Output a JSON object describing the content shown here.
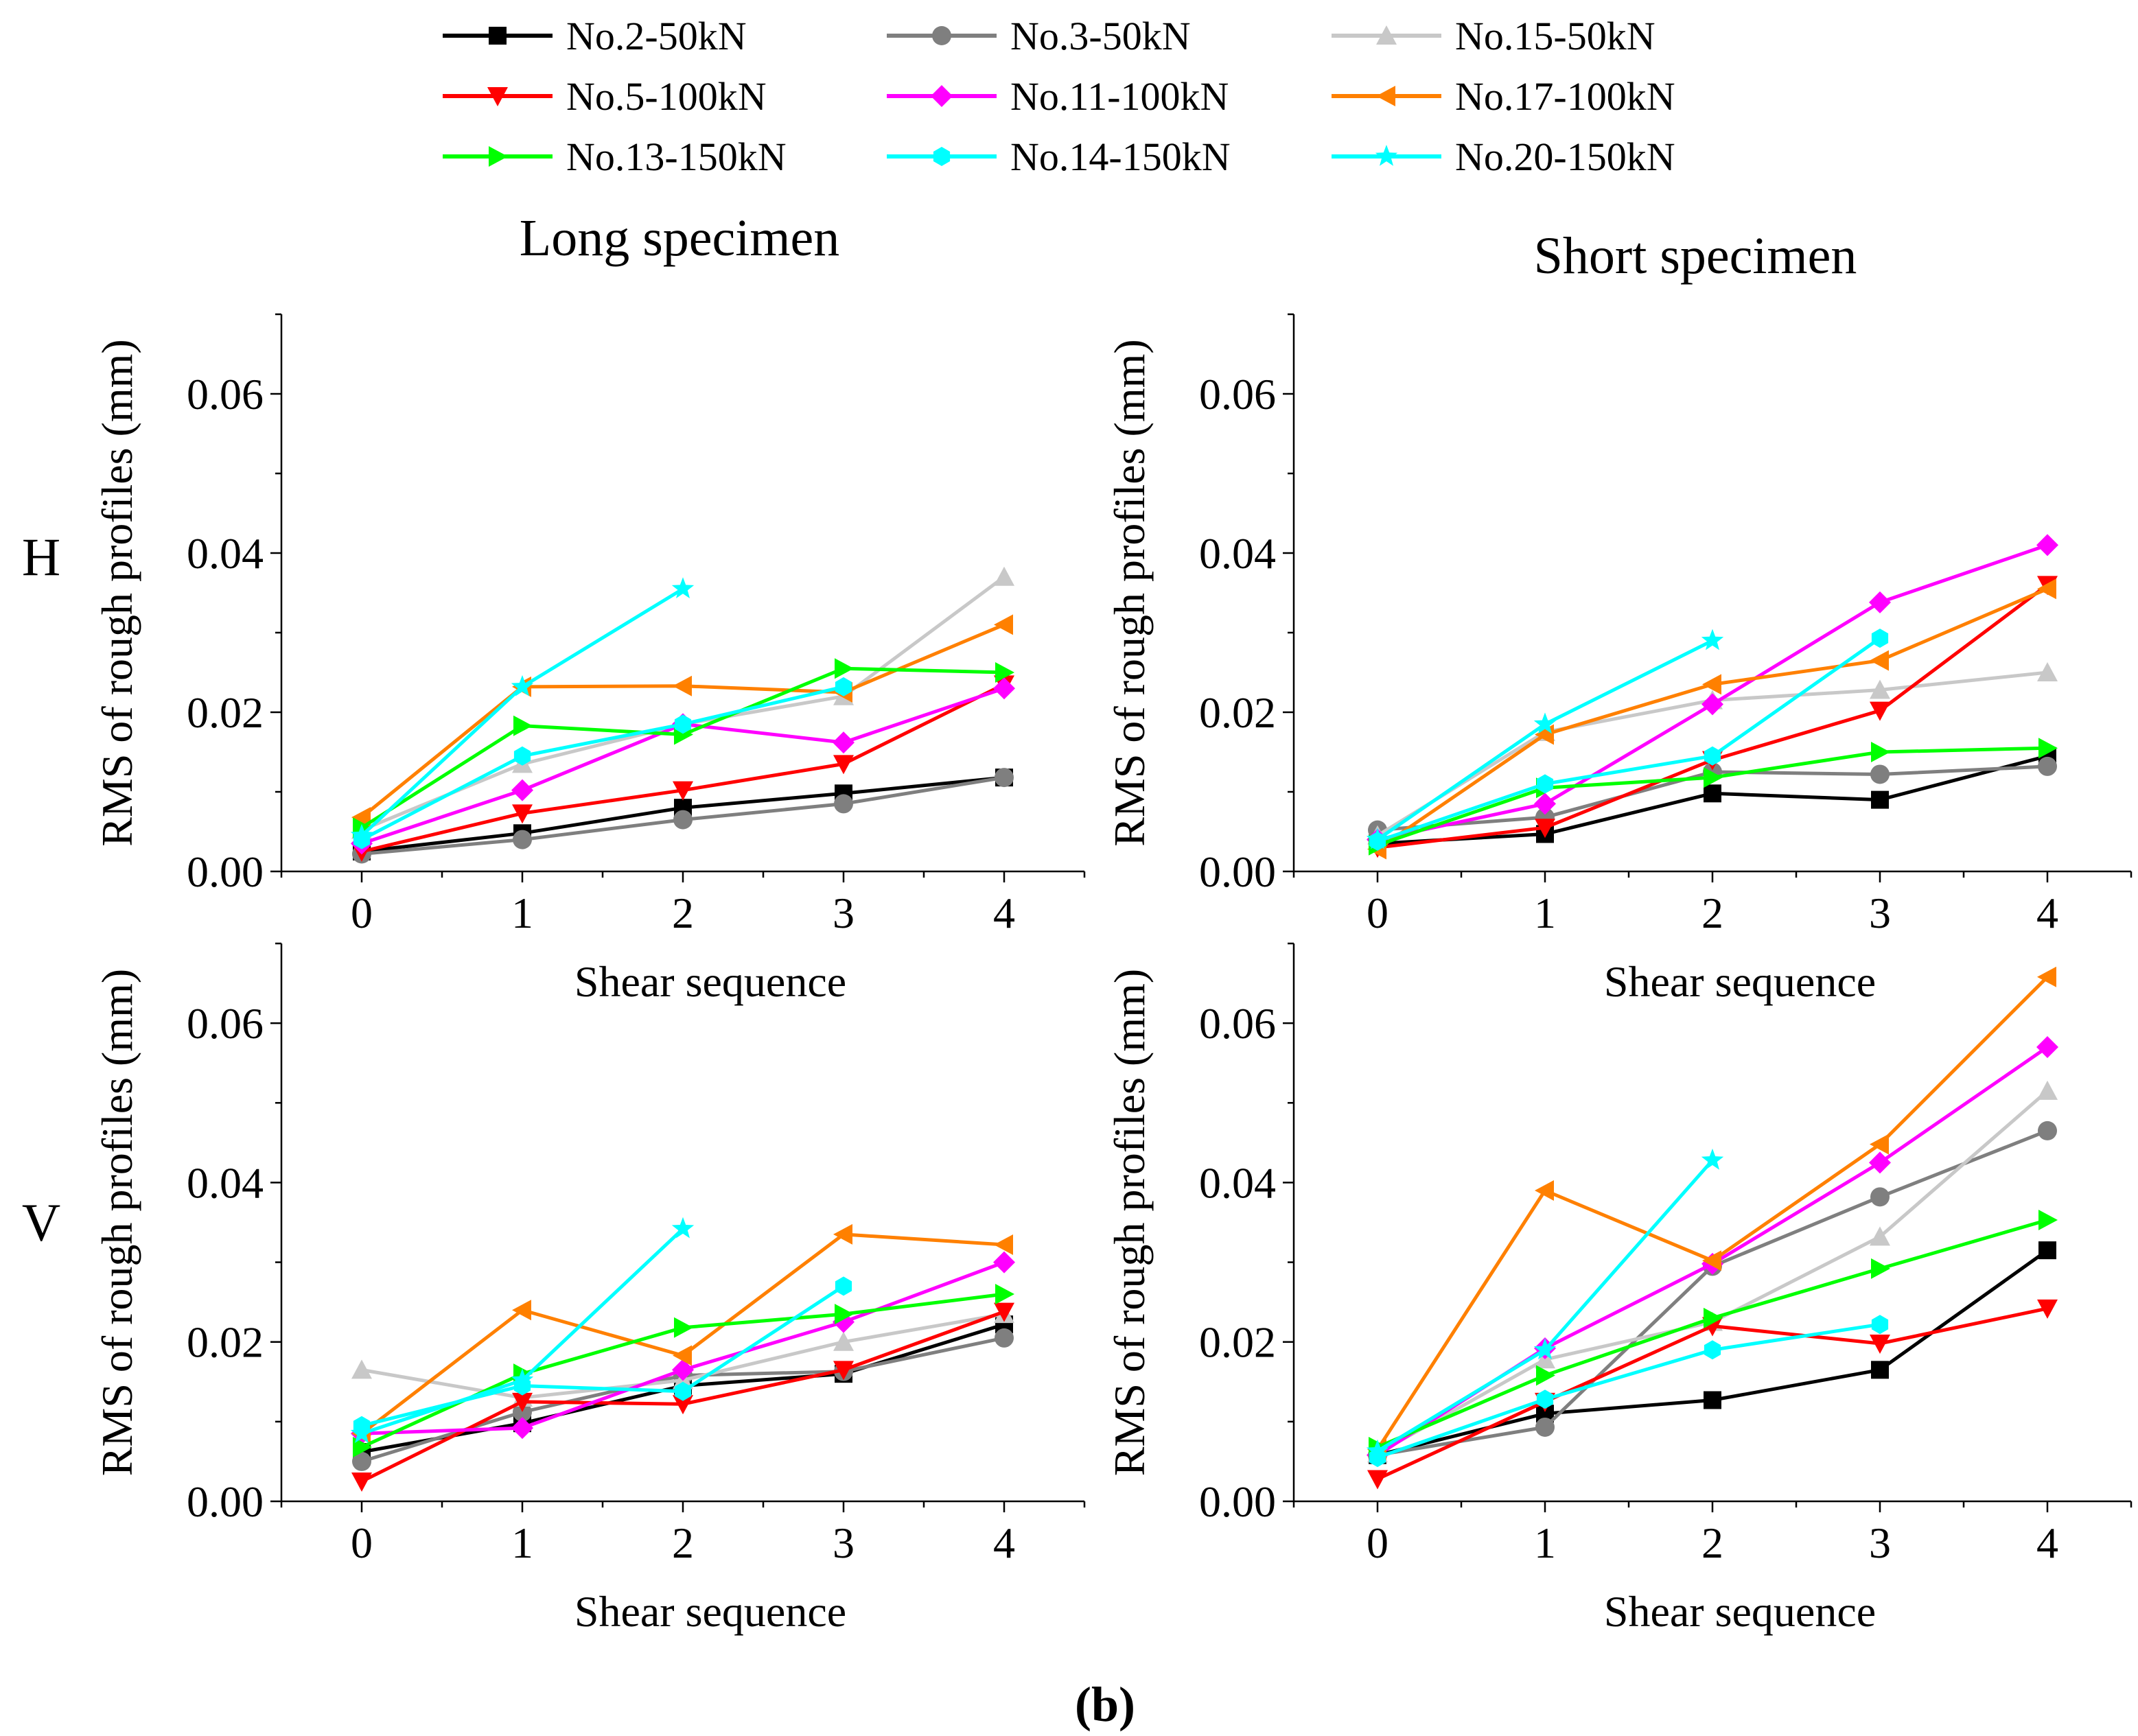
{
  "figure_label": "(b)",
  "column_titles": {
    "left": "Long specimen",
    "right": "Short specimen"
  },
  "row_labels": {
    "top": "H",
    "bottom": "V"
  },
  "legend": [
    {
      "name": "No.2-50kN",
      "color": "#000000",
      "marker": "square"
    },
    {
      "name": "No.3-50kN",
      "color": "#7f7f7f",
      "marker": "circle"
    },
    {
      "name": "No.15-50kN",
      "color": "#c8c8c8",
      "marker": "triangle-up"
    },
    {
      "name": "No.5-100kN",
      "color": "#ff0000",
      "marker": "triangle-down"
    },
    {
      "name": "No.11-100kN",
      "color": "#ff00ff",
      "marker": "diamond"
    },
    {
      "name": "No.17-100kN",
      "color": "#ff8000",
      "marker": "triangle-left"
    },
    {
      "name": "No.13-150kN",
      "color": "#00ff00",
      "marker": "triangle-right"
    },
    {
      "name": "No.14-150kN",
      "color": "#00ffff",
      "marker": "hexagon"
    },
    {
      "name": "No.20-150kN",
      "color": "#00ffff",
      "marker": "star"
    }
  ],
  "chart_data": [
    {
      "type": "line",
      "title": "Long specimen - H",
      "xlabel": "Shear sequence",
      "ylabel": "RMS of rough profiles (mm)",
      "xlim": [
        -0.5,
        4.5
      ],
      "ylim": [
        0,
        0.07
      ],
      "x_ticks": [
        "0",
        "1",
        "2",
        "3",
        "4"
      ],
      "y_ticks": [
        "0.00",
        "0.02",
        "0.04",
        "0.06"
      ],
      "x": [
        0,
        1,
        2,
        3,
        4
      ],
      "series": [
        {
          "name": "No.2-50kN",
          "values": [
            0.0025,
            0.0048,
            0.008,
            0.0098,
            0.0118
          ]
        },
        {
          "name": "No.3-50kN",
          "values": [
            0.0022,
            0.004,
            0.0065,
            0.0085,
            0.0118
          ]
        },
        {
          "name": "No.15-50kN",
          "values": [
            0.0052,
            0.0135,
            0.0185,
            0.022,
            0.037
          ]
        },
        {
          "name": "No.5-100kN",
          "values": [
            0.0025,
            0.0073,
            0.0102,
            0.0135,
            0.0235
          ]
        },
        {
          "name": "No.11-100kN",
          "values": [
            0.0035,
            0.0102,
            0.0185,
            0.0162,
            0.023
          ]
        },
        {
          "name": "No.17-100kN",
          "values": [
            0.0068,
            0.0232,
            0.0233,
            0.0225,
            0.031
          ]
        },
        {
          "name": "No.13-150kN",
          "values": [
            0.0055,
            0.0183,
            0.0172,
            0.0255,
            0.025
          ]
        },
        {
          "name": "No.14-150kN",
          "values": [
            0.004,
            0.0145,
            0.0185,
            0.0232,
            null
          ]
        },
        {
          "name": "No.20-150kN",
          "values": [
            0.0045,
            0.0232,
            0.0355,
            null,
            null
          ]
        }
      ]
    },
    {
      "type": "line",
      "title": "Short specimen - H",
      "xlabel": "Shear sequence",
      "ylabel": "RMS of rough profiles (mm)",
      "xlim": [
        -0.5,
        4.5
      ],
      "ylim": [
        0,
        0.07
      ],
      "x_ticks": [
        "0",
        "1",
        "2",
        "3",
        "4"
      ],
      "y_ticks": [
        "0.00",
        "0.02",
        "0.04",
        "0.06"
      ],
      "x": [
        0,
        1,
        2,
        3,
        4
      ],
      "series": [
        {
          "name": "No.2-50kN",
          "values": [
            0.0035,
            0.0047,
            0.0098,
            0.009,
            0.0145
          ]
        },
        {
          "name": "No.3-50kN",
          "values": [
            0.0052,
            0.0068,
            0.0125,
            0.0122,
            0.0132
          ]
        },
        {
          "name": "No.15-50kN",
          "values": [
            0.0045,
            0.0175,
            0.0215,
            0.0228,
            0.025
          ]
        },
        {
          "name": "No.5-100kN",
          "values": [
            0.003,
            0.0055,
            0.014,
            0.0202,
            0.036
          ]
        },
        {
          "name": "No.11-100kN",
          "values": [
            0.004,
            0.0085,
            0.021,
            0.0338,
            0.041
          ]
        },
        {
          "name": "No.17-100kN",
          "values": [
            0.0028,
            0.0172,
            0.0235,
            0.0265,
            0.0355
          ]
        },
        {
          "name": "No.13-150kN",
          "values": [
            0.0033,
            0.0105,
            0.0118,
            0.015,
            0.0155
          ]
        },
        {
          "name": "No.14-150kN",
          "values": [
            0.0038,
            0.011,
            0.0145,
            0.0293,
            null
          ]
        },
        {
          "name": "No.20-150kN",
          "values": [
            0.004,
            0.0185,
            0.029,
            null,
            null
          ]
        }
      ]
    },
    {
      "type": "line",
      "title": "Long specimen - V",
      "xlabel": "Shear sequence",
      "ylabel": "RMS of rough profiles (mm)",
      "xlim": [
        -0.5,
        4.5
      ],
      "ylim": [
        0,
        0.07
      ],
      "x_ticks": [
        "0",
        "1",
        "2",
        "3",
        "4"
      ],
      "y_ticks": [
        "0.00",
        "0.02",
        "0.04",
        "0.06"
      ],
      "x": [
        0,
        1,
        2,
        3,
        4
      ],
      "series": [
        {
          "name": "No.2-50kN",
          "values": [
            0.0062,
            0.0098,
            0.0145,
            0.016,
            0.0222
          ]
        },
        {
          "name": "No.3-50kN",
          "values": [
            0.005,
            0.0112,
            0.0158,
            0.0163,
            0.0205
          ]
        },
        {
          "name": "No.15-50kN",
          "values": [
            0.0165,
            0.013,
            0.0152,
            0.02,
            0.0235
          ]
        },
        {
          "name": "No.5-100kN",
          "values": [
            0.0025,
            0.0125,
            0.0122,
            0.0165,
            0.0238
          ]
        },
        {
          "name": "No.11-100kN",
          "values": [
            0.0085,
            0.0092,
            0.0165,
            0.0225,
            0.03
          ]
        },
        {
          "name": "No.17-100kN",
          "values": [
            0.0085,
            0.024,
            0.0183,
            0.0335,
            0.0322
          ]
        },
        {
          "name": "No.13-150kN",
          "values": [
            0.0068,
            0.016,
            0.0218,
            0.0235,
            0.026
          ]
        },
        {
          "name": "No.14-150kN",
          "values": [
            0.0095,
            0.0145,
            0.0138,
            0.027,
            null
          ]
        },
        {
          "name": "No.20-150kN",
          "values": [
            0.0085,
            0.0152,
            0.0342,
            null,
            null
          ]
        }
      ]
    },
    {
      "type": "line",
      "title": "Short specimen - V",
      "xlabel": "Shear sequence",
      "ylabel": "RMS of rough profiles (mm)",
      "xlim": [
        -0.5,
        4.5
      ],
      "ylim": [
        0,
        0.07
      ],
      "x_ticks": [
        "0",
        "1",
        "2",
        "3",
        "4"
      ],
      "y_ticks": [
        "0.00",
        "0.02",
        "0.04",
        "0.06"
      ],
      "x": [
        0,
        1,
        2,
        3,
        4
      ],
      "series": [
        {
          "name": "No.2-50kN",
          "values": [
            0.0058,
            0.011,
            0.0127,
            0.0165,
            0.0315
          ]
        },
        {
          "name": "No.3-50kN",
          "values": [
            0.0058,
            0.0093,
            0.0295,
            0.0382,
            0.0465
          ]
        },
        {
          "name": "No.15-50kN",
          "values": [
            0.006,
            0.0178,
            0.0225,
            0.0332,
            0.0515
          ]
        },
        {
          "name": "No.5-100kN",
          "values": [
            0.0028,
            0.0125,
            0.022,
            0.0198,
            0.0242
          ]
        },
        {
          "name": "No.11-100kN",
          "values": [
            0.0058,
            0.0192,
            0.0298,
            0.0425,
            0.057
          ]
        },
        {
          "name": "No.17-100kN",
          "values": [
            0.0065,
            0.039,
            0.0302,
            0.0448,
            0.0658
          ]
        },
        {
          "name": "No.13-150kN",
          "values": [
            0.0068,
            0.0158,
            0.023,
            0.0292,
            0.0353
          ]
        },
        {
          "name": "No.14-150kN",
          "values": [
            0.0055,
            0.0128,
            0.019,
            0.0222,
            null
          ]
        },
        {
          "name": "No.20-150kN",
          "values": [
            0.0063,
            0.019,
            0.0428,
            null,
            null
          ]
        }
      ]
    }
  ]
}
